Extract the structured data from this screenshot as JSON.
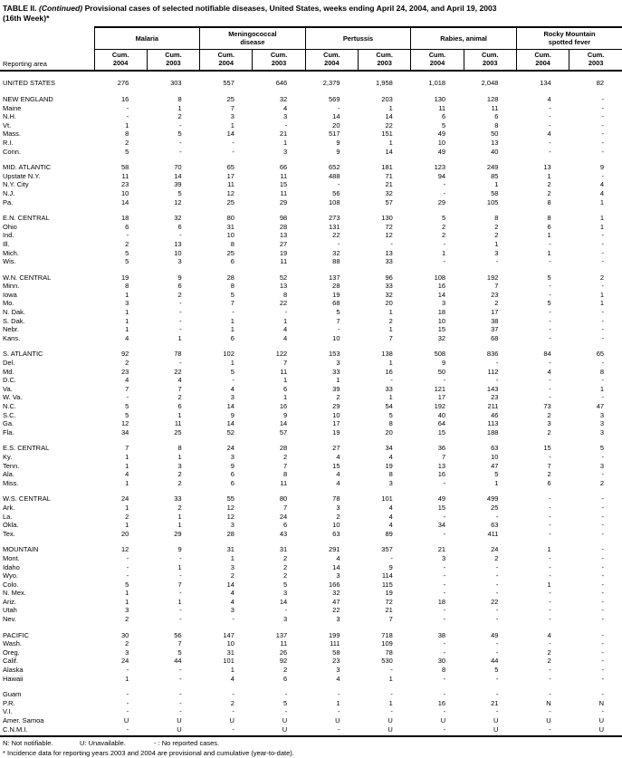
{
  "title": {
    "table_label": "TABLE II.",
    "continued": "(Continued)",
    "rest": "Provisional cases of selected notifiable diseases, United States, weeks ending April 24, 2004, and April 19, 2003",
    "week_line": "(16th Week)*"
  },
  "header": {
    "reporting_area": "Reporting area",
    "groups": [
      "Malaria",
      "Meningococcal\ndisease",
      "Pertussis",
      "Rabies, animal",
      "Rocky Mountain\nspotted fever"
    ],
    "subcols": [
      "Cum.\n2004",
      "Cum.\n2003"
    ]
  },
  "rows": [
    {
      "area": "UNITED STATES",
      "group_start": true,
      "values": [
        "276",
        "303",
        "557",
        "646",
        "2,379",
        "1,958",
        "1,018",
        "2,048",
        "134",
        "82"
      ]
    },
    {
      "area": "NEW ENGLAND",
      "group_start": true,
      "values": [
        "16",
        "8",
        "25",
        "32",
        "569",
        "203",
        "130",
        "128",
        "4",
        "-"
      ]
    },
    {
      "area": "Maine",
      "group_start": false,
      "values": [
        "-",
        "1",
        "7",
        "4",
        "-",
        "1",
        "11",
        "11",
        "-",
        "-"
      ]
    },
    {
      "area": "N.H.",
      "group_start": false,
      "values": [
        "-",
        "2",
        "3",
        "3",
        "14",
        "14",
        "6",
        "6",
        "-",
        "-"
      ]
    },
    {
      "area": "Vt.",
      "group_start": false,
      "values": [
        "1",
        "-",
        "1",
        "-",
        "20",
        "22",
        "5",
        "8",
        "-",
        "-"
      ]
    },
    {
      "area": "Mass.",
      "group_start": false,
      "values": [
        "8",
        "5",
        "14",
        "21",
        "517",
        "151",
        "49",
        "50",
        "4",
        "-"
      ]
    },
    {
      "area": "R.I.",
      "group_start": false,
      "values": [
        "2",
        "-",
        "-",
        "1",
        "9",
        "1",
        "10",
        "13",
        "-",
        "-"
      ]
    },
    {
      "area": "Conn.",
      "group_start": false,
      "values": [
        "5",
        "-",
        "-",
        "3",
        "9",
        "14",
        "49",
        "40",
        "-",
        "-"
      ]
    },
    {
      "area": "MID. ATLANTIC",
      "group_start": true,
      "values": [
        "58",
        "70",
        "65",
        "66",
        "652",
        "181",
        "123",
        "249",
        "13",
        "9"
      ]
    },
    {
      "area": "Upstate N.Y.",
      "group_start": false,
      "values": [
        "11",
        "14",
        "17",
        "11",
        "488",
        "71",
        "94",
        "85",
        "1",
        "-"
      ]
    },
    {
      "area": "N.Y. City",
      "group_start": false,
      "values": [
        "23",
        "39",
        "11",
        "15",
        "-",
        "21",
        "-",
        "1",
        "2",
        "4"
      ]
    },
    {
      "area": "N.J.",
      "group_start": false,
      "values": [
        "10",
        "5",
        "12",
        "11",
        "56",
        "32",
        "-",
        "58",
        "2",
        "4"
      ]
    },
    {
      "area": "Pa.",
      "group_start": false,
      "values": [
        "14",
        "12",
        "25",
        "29",
        "108",
        "57",
        "29",
        "105",
        "8",
        "1"
      ]
    },
    {
      "area": "E.N. CENTRAL",
      "group_start": true,
      "values": [
        "18",
        "32",
        "80",
        "98",
        "273",
        "130",
        "5",
        "8",
        "8",
        "1"
      ]
    },
    {
      "area": "Ohio",
      "group_start": false,
      "values": [
        "6",
        "6",
        "31",
        "28",
        "131",
        "72",
        "2",
        "2",
        "6",
        "1"
      ]
    },
    {
      "area": "Ind.",
      "group_start": false,
      "values": [
        "-",
        "-",
        "10",
        "13",
        "22",
        "12",
        "2",
        "2",
        "1",
        "-"
      ]
    },
    {
      "area": "Ill.",
      "group_start": false,
      "values": [
        "2",
        "13",
        "8",
        "27",
        "-",
        "-",
        "-",
        "1",
        "-",
        "-"
      ]
    },
    {
      "area": "Mich.",
      "group_start": false,
      "values": [
        "5",
        "10",
        "25",
        "19",
        "32",
        "13",
        "1",
        "3",
        "1",
        "-"
      ]
    },
    {
      "area": "Wis.",
      "group_start": false,
      "values": [
        "5",
        "3",
        "6",
        "11",
        "88",
        "33",
        "-",
        "-",
        "-",
        "-"
      ]
    },
    {
      "area": "W.N. CENTRAL",
      "group_start": true,
      "values": [
        "19",
        "9",
        "28",
        "52",
        "137",
        "96",
        "108",
        "192",
        "5",
        "2"
      ]
    },
    {
      "area": "Minn.",
      "group_start": false,
      "values": [
        "8",
        "6",
        "8",
        "13",
        "28",
        "33",
        "16",
        "7",
        "-",
        "-"
      ]
    },
    {
      "area": "Iowa",
      "group_start": false,
      "values": [
        "1",
        "2",
        "5",
        "8",
        "19",
        "32",
        "14",
        "23",
        "-",
        "1"
      ]
    },
    {
      "area": "Mo.",
      "group_start": false,
      "values": [
        "3",
        "-",
        "7",
        "22",
        "68",
        "20",
        "3",
        "2",
        "5",
        "1"
      ]
    },
    {
      "area": "N. Dak.",
      "group_start": false,
      "values": [
        "1",
        "-",
        "-",
        "-",
        "5",
        "1",
        "18",
        "17",
        "-",
        "-"
      ]
    },
    {
      "area": "S. Dak.",
      "group_start": false,
      "values": [
        "1",
        "-",
        "1",
        "1",
        "7",
        "2",
        "10",
        "38",
        "-",
        "-"
      ]
    },
    {
      "area": "Nebr.",
      "group_start": false,
      "values": [
        "1",
        "-",
        "1",
        "4",
        "-",
        "1",
        "15",
        "37",
        "-",
        "-"
      ]
    },
    {
      "area": "Kans.",
      "group_start": false,
      "values": [
        "4",
        "1",
        "6",
        "4",
        "10",
        "7",
        "32",
        "68",
        "-",
        "-"
      ]
    },
    {
      "area": "S. ATLANTIC",
      "group_start": true,
      "values": [
        "92",
        "78",
        "102",
        "122",
        "153",
        "138",
        "508",
        "836",
        "84",
        "65"
      ]
    },
    {
      "area": "Del.",
      "group_start": false,
      "values": [
        "2",
        "-",
        "1",
        "7",
        "3",
        "1",
        "9",
        "-",
        "-",
        "-"
      ]
    },
    {
      "area": "Md.",
      "group_start": false,
      "values": [
        "23",
        "22",
        "5",
        "11",
        "33",
        "16",
        "50",
        "112",
        "4",
        "8"
      ]
    },
    {
      "area": "D.C.",
      "group_start": false,
      "values": [
        "4",
        "4",
        "-",
        "1",
        "1",
        "-",
        "-",
        "-",
        "-",
        "-"
      ]
    },
    {
      "area": "Va.",
      "group_start": false,
      "values": [
        "7",
        "7",
        "4",
        "6",
        "39",
        "33",
        "121",
        "143",
        "-",
        "1"
      ]
    },
    {
      "area": "W. Va.",
      "group_start": false,
      "values": [
        "-",
        "2",
        "3",
        "1",
        "2",
        "1",
        "17",
        "23",
        "-",
        "-"
      ]
    },
    {
      "area": "N.C.",
      "group_start": false,
      "values": [
        "5",
        "6",
        "14",
        "16",
        "29",
        "54",
        "192",
        "211",
        "73",
        "47"
      ]
    },
    {
      "area": "S.C.",
      "group_start": false,
      "values": [
        "5",
        "1",
        "9",
        "9",
        "10",
        "5",
        "40",
        "46",
        "2",
        "3"
      ]
    },
    {
      "area": "Ga.",
      "group_start": false,
      "values": [
        "12",
        "11",
        "14",
        "14",
        "17",
        "8",
        "64",
        "113",
        "3",
        "3"
      ]
    },
    {
      "area": "Fla.",
      "group_start": false,
      "values": [
        "34",
        "25",
        "52",
        "57",
        "19",
        "20",
        "15",
        "188",
        "2",
        "3"
      ]
    },
    {
      "area": "E.S. CENTRAL",
      "group_start": true,
      "values": [
        "7",
        "8",
        "24",
        "28",
        "27",
        "34",
        "36",
        "63",
        "15",
        "5"
      ]
    },
    {
      "area": "Ky.",
      "group_start": false,
      "values": [
        "1",
        "1",
        "3",
        "2",
        "4",
        "4",
        "7",
        "10",
        "-",
        "-"
      ]
    },
    {
      "area": "Tenn.",
      "group_start": false,
      "values": [
        "1",
        "3",
        "9",
        "7",
        "15",
        "19",
        "13",
        "47",
        "7",
        "3"
      ]
    },
    {
      "area": "Ala.",
      "group_start": false,
      "values": [
        "4",
        "2",
        "6",
        "8",
        "4",
        "8",
        "16",
        "5",
        "2",
        "-"
      ]
    },
    {
      "area": "Miss.",
      "group_start": false,
      "values": [
        "1",
        "2",
        "6",
        "11",
        "4",
        "3",
        "-",
        "1",
        "6",
        "2"
      ]
    },
    {
      "area": "W.S. CENTRAL",
      "group_start": true,
      "values": [
        "24",
        "33",
        "55",
        "80",
        "78",
        "101",
        "49",
        "499",
        "-",
        "-"
      ]
    },
    {
      "area": "Ark.",
      "group_start": false,
      "values": [
        "1",
        "2",
        "12",
        "7",
        "3",
        "4",
        "15",
        "25",
        "-",
        "-"
      ]
    },
    {
      "area": "La.",
      "group_start": false,
      "values": [
        "2",
        "1",
        "12",
        "24",
        "2",
        "4",
        "-",
        "-",
        "-",
        "-"
      ]
    },
    {
      "area": "Okla.",
      "group_start": false,
      "values": [
        "1",
        "1",
        "3",
        "6",
        "10",
        "4",
        "34",
        "63",
        "-",
        "-"
      ]
    },
    {
      "area": "Tex.",
      "group_start": false,
      "values": [
        "20",
        "29",
        "28",
        "43",
        "63",
        "89",
        "-",
        "411",
        "-",
        "-"
      ]
    },
    {
      "area": "MOUNTAIN",
      "group_start": true,
      "values": [
        "12",
        "9",
        "31",
        "31",
        "291",
        "357",
        "21",
        "24",
        "1",
        "-"
      ]
    },
    {
      "area": "Mont.",
      "group_start": false,
      "values": [
        "-",
        "-",
        "1",
        "2",
        "4",
        "-",
        "3",
        "2",
        "-",
        "-"
      ]
    },
    {
      "area": "Idaho",
      "group_start": false,
      "values": [
        "-",
        "1",
        "3",
        "2",
        "14",
        "9",
        "-",
        "-",
        "-",
        "-"
      ]
    },
    {
      "area": "Wyo.",
      "group_start": false,
      "values": [
        "-",
        "-",
        "2",
        "2",
        "3",
        "114",
        "-",
        "-",
        "-",
        "-"
      ]
    },
    {
      "area": "Colo.",
      "group_start": false,
      "values": [
        "5",
        "7",
        "14",
        "5",
        "166",
        "115",
        "-",
        "-",
        "1",
        "-"
      ]
    },
    {
      "area": "N. Mex.",
      "group_start": false,
      "values": [
        "1",
        "-",
        "4",
        "3",
        "32",
        "19",
        "-",
        "-",
        "-",
        "-"
      ]
    },
    {
      "area": "Ariz.",
      "group_start": false,
      "values": [
        "1",
        "1",
        "4",
        "14",
        "47",
        "72",
        "18",
        "22",
        "-",
        "-"
      ]
    },
    {
      "area": "Utah",
      "group_start": false,
      "values": [
        "3",
        "-",
        "3",
        "-",
        "22",
        "21",
        "-",
        "-",
        "-",
        "-"
      ]
    },
    {
      "area": "Nev.",
      "group_start": false,
      "values": [
        "2",
        "-",
        "-",
        "3",
        "3",
        "7",
        "-",
        "-",
        "-",
        "-"
      ]
    },
    {
      "area": "PACIFIC",
      "group_start": true,
      "values": [
        "30",
        "56",
        "147",
        "137",
        "199",
        "718",
        "38",
        "49",
        "4",
        "-"
      ]
    },
    {
      "area": "Wash.",
      "group_start": false,
      "values": [
        "2",
        "7",
        "10",
        "11",
        "111",
        "109",
        "-",
        "-",
        "-",
        "-"
      ]
    },
    {
      "area": "Oreg.",
      "group_start": false,
      "values": [
        "3",
        "5",
        "31",
        "26",
        "58",
        "78",
        "-",
        "-",
        "2",
        "-"
      ]
    },
    {
      "area": "Calif.",
      "group_start": false,
      "values": [
        "24",
        "44",
        "101",
        "92",
        "23",
        "530",
        "30",
        "44",
        "2",
        "-"
      ]
    },
    {
      "area": "Alaska",
      "group_start": false,
      "values": [
        "-",
        "-",
        "1",
        "2",
        "3",
        "-",
        "8",
        "5",
        "-",
        "-"
      ]
    },
    {
      "area": "Hawaii",
      "group_start": false,
      "values": [
        "1",
        "-",
        "4",
        "6",
        "4",
        "1",
        "-",
        "-",
        "-",
        "-"
      ]
    },
    {
      "area": "Guam",
      "group_start": true,
      "values": [
        "-",
        "-",
        "-",
        "-",
        "-",
        "-",
        "-",
        "-",
        "-",
        "-"
      ]
    },
    {
      "area": "P.R.",
      "group_start": false,
      "values": [
        "-",
        "-",
        "2",
        "5",
        "1",
        "1",
        "16",
        "21",
        "N",
        "N"
      ]
    },
    {
      "area": "V.I.",
      "group_start": false,
      "values": [
        "-",
        "-",
        "-",
        "-",
        "-",
        "-",
        "-",
        "-",
        "-",
        "-"
      ]
    },
    {
      "area": "Amer. Samoa",
      "group_start": false,
      "values": [
        "U",
        "U",
        "U",
        "U",
        "U",
        "U",
        "U",
        "U",
        "U",
        "U"
      ]
    },
    {
      "area": "C.N.M.I.",
      "group_start": false,
      "values": [
        "-",
        "U",
        "-",
        "U",
        "-",
        "U",
        "-",
        "U",
        "-",
        "U"
      ]
    }
  ],
  "footnotes": {
    "legend": [
      "N: Not notifiable.",
      "U: Unavailable.",
      "- : No reported cases."
    ],
    "note": "* Incidence data for reporting years 2003 and 2004 are provisional and cumulative (year-to-date)."
  }
}
